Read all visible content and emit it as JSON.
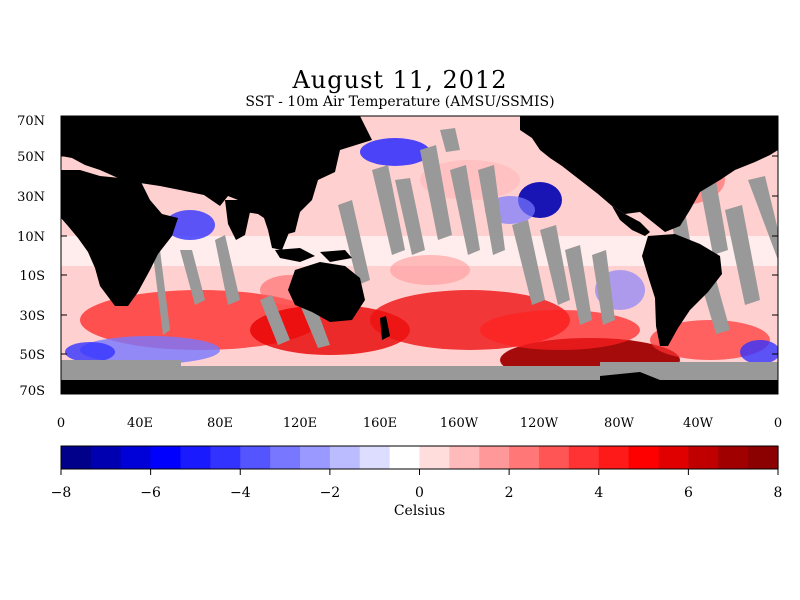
{
  "title": "August 11, 2012",
  "subtitle": "SST - 10m Air Temperature (AMSU/SSMIS)",
  "lat_labels": [
    "70N",
    "50N",
    "30N",
    "10N",
    "10S",
    "30S",
    "50S",
    "70S"
  ],
  "lon_labels": [
    "0",
    "40E",
    "80E",
    "120E",
    "160E",
    "160W",
    "120W",
    "80W",
    "40W",
    "0"
  ],
  "colorbar": {
    "unit": "Celsius",
    "min": -8,
    "max": 8,
    "tick_labels": [
      "-8",
      "-6",
      "-4",
      "-2",
      "0",
      "2",
      "4",
      "6",
      "8"
    ],
    "colors": [
      "#00008b",
      "#0000b0",
      "#0000d8",
      "#0000ff",
      "#1a1aff",
      "#3333ff",
      "#5555ff",
      "#7777ff",
      "#9999ff",
      "#bbbbff",
      "#ddddff",
      "#ffffff",
      "#ffdddd",
      "#ffbbbb",
      "#ff9999",
      "#ff7777",
      "#ff5555",
      "#ff3333",
      "#ff1a1a",
      "#ff0000",
      "#e00000",
      "#c00000",
      "#a00000",
      "#8b0000"
    ]
  },
  "colors": {
    "land": "#000000",
    "no_data": "#999999",
    "ocean_base": "#ffd6d6"
  }
}
